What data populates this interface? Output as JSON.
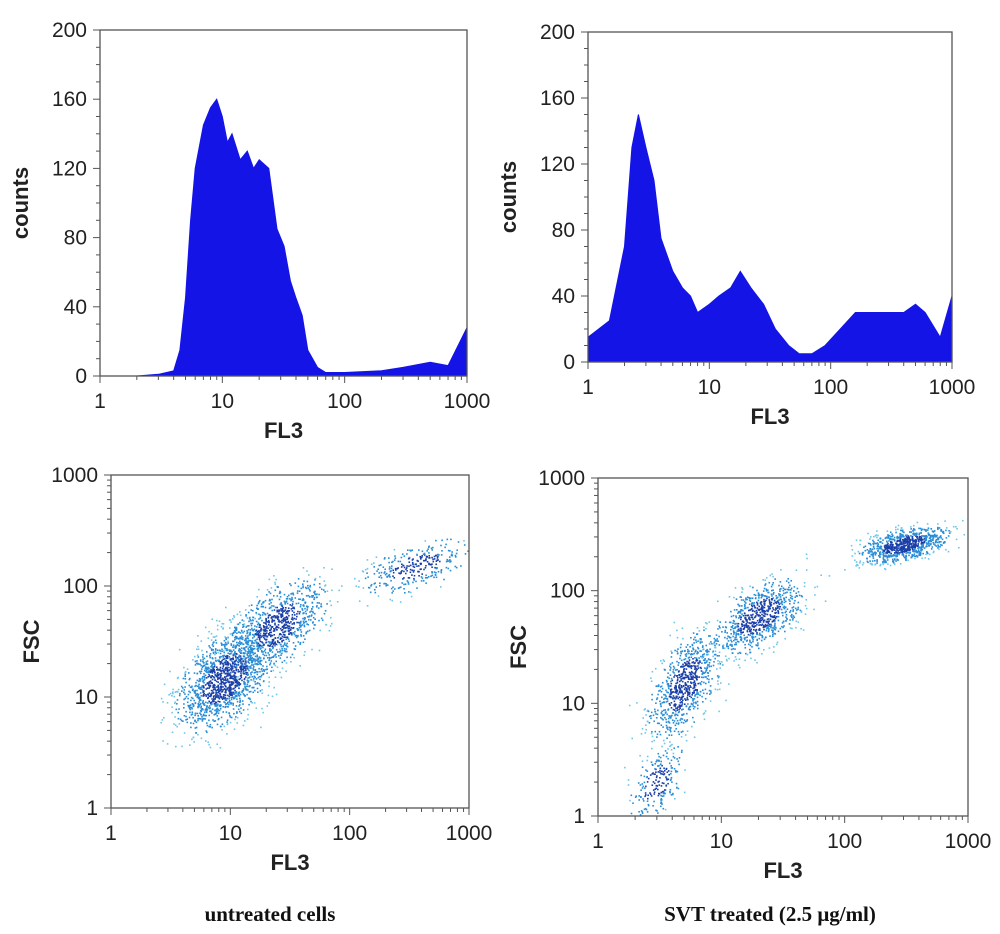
{
  "captions": {
    "left": "untreated cells",
    "right": "SVT treated (2.5 μg/ml)"
  },
  "colors": {
    "histogram_fill": "#1414e6",
    "scatter_dense": "#1a3fa8",
    "scatter_mid": "#2a8ed6",
    "scatter_light": "#6ec8ea",
    "axis": "#555555"
  },
  "chart_data": [
    {
      "type": "area",
      "panel": "top-left",
      "xlabel": "FL3",
      "ylabel": "counts",
      "x_scale": "log",
      "xlim": [
        1,
        1000
      ],
      "ylim": [
        0,
        200
      ],
      "x_ticks": [
        "1",
        "10",
        "100",
        "1000"
      ],
      "y_ticks": [
        "0",
        "40",
        "80",
        "120",
        "160",
        "200"
      ],
      "x": [
        1,
        2,
        3,
        4,
        4.5,
        5,
        5.5,
        6,
        7,
        8,
        9,
        10,
        11,
        12,
        14,
        16,
        18,
        20,
        24,
        28,
        32,
        36,
        40,
        45,
        50,
        60,
        70,
        100,
        200,
        300,
        500,
        700,
        1000
      ],
      "values": [
        0,
        0,
        1,
        3,
        15,
        45,
        90,
        120,
        145,
        155,
        160,
        150,
        135,
        140,
        125,
        130,
        120,
        125,
        120,
        85,
        75,
        55,
        45,
        35,
        15,
        5,
        2,
        2,
        3,
        5,
        8,
        6,
        28
      ]
    },
    {
      "type": "area",
      "panel": "top-right",
      "xlabel": "FL3",
      "ylabel": "counts",
      "x_scale": "log",
      "xlim": [
        1,
        1000
      ],
      "ylim": [
        0,
        200
      ],
      "x_ticks": [
        "1",
        "10",
        "100",
        "1000"
      ],
      "y_ticks": [
        "0",
        "40",
        "80",
        "120",
        "160",
        "200"
      ],
      "x": [
        1,
        1.5,
        2,
        2.3,
        2.6,
        3,
        3.5,
        4,
        5,
        6,
        7,
        8,
        10,
        12,
        15,
        18,
        22,
        28,
        35,
        45,
        55,
        70,
        90,
        120,
        160,
        200,
        300,
        400,
        500,
        600,
        800,
        1000
      ],
      "values": [
        15,
        25,
        70,
        130,
        150,
        130,
        110,
        75,
        55,
        45,
        40,
        30,
        35,
        40,
        45,
        55,
        45,
        35,
        20,
        10,
        5,
        5,
        10,
        20,
        30,
        30,
        30,
        30,
        35,
        30,
        15,
        40
      ]
    },
    {
      "type": "scatter",
      "panel": "bottom-left",
      "xlabel": "FL3",
      "ylabel": "FSC",
      "x_scale": "log",
      "y_scale": "log",
      "xlim": [
        1,
        1000
      ],
      "ylim": [
        1,
        1000
      ],
      "x_ticks": [
        "1",
        "10",
        "100",
        "1000"
      ],
      "y_ticks": [
        "1",
        "10",
        "100",
        "1000"
      ],
      "clusters": [
        {
          "x": 9,
          "y": 15,
          "sx": 0.28,
          "sy": 0.35,
          "weight": 0.55
        },
        {
          "x": 25,
          "y": 45,
          "sx": 0.28,
          "sy": 0.3,
          "weight": 0.33
        },
        {
          "x": 350,
          "y": 150,
          "sx": 0.3,
          "sy": 0.18,
          "weight": 0.12
        }
      ]
    },
    {
      "type": "scatter",
      "panel": "bottom-right",
      "xlabel": "FL3",
      "ylabel": "FSC",
      "x_scale": "log",
      "y_scale": "log",
      "xlim": [
        1,
        1000
      ],
      "ylim": [
        1,
        1000
      ],
      "x_ticks": [
        "1",
        "10",
        "100",
        "1000"
      ],
      "y_ticks": [
        "1",
        "10",
        "100",
        "1000"
      ],
      "clusters": [
        {
          "x": 5,
          "y": 15,
          "sx": 0.2,
          "sy": 0.35,
          "weight": 0.3
        },
        {
          "x": 20,
          "y": 60,
          "sx": 0.25,
          "sy": 0.25,
          "weight": 0.3
        },
        {
          "x": 300,
          "y": 260,
          "sx": 0.25,
          "sy": 0.12,
          "weight": 0.32
        },
        {
          "x": 3,
          "y": 2,
          "sx": 0.15,
          "sy": 0.25,
          "weight": 0.08
        }
      ]
    }
  ]
}
